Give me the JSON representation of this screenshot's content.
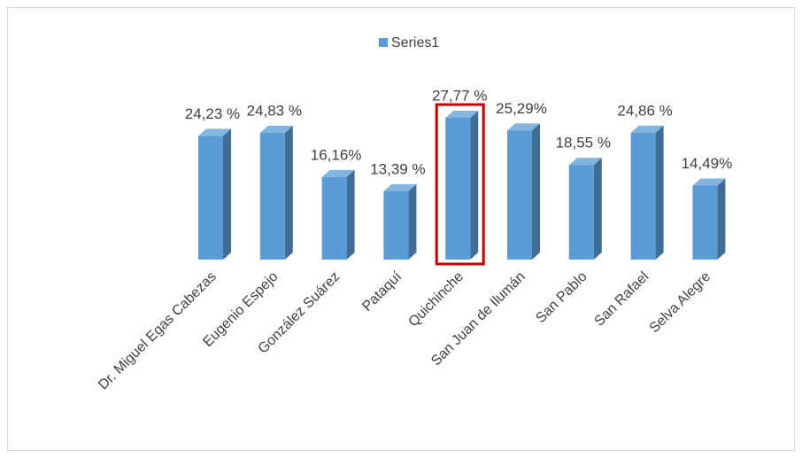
{
  "chart_data": {
    "type": "bar3d",
    "categories": [
      "Dr. Miguel Egas Cabezas",
      "Eugenio Espejo",
      "González Suárez",
      "Pataquí",
      "Quichinche",
      "San Juan de Ilumán",
      "San Pablo",
      "San Rafael",
      "Selva Alegre"
    ],
    "series": [
      {
        "name": "Series1",
        "color": "#5b9bd5",
        "values": [
          24.23,
          24.83,
          16.16,
          13.39,
          27.77,
          25.29,
          18.55,
          24.86,
          14.49
        ],
        "value_labels": [
          "24,23 %",
          "24,83 %",
          "16,16%",
          "13,39 %",
          "27,77 %",
          "25,29%",
          "18,55 %",
          "24,86 %",
          "14,49%"
        ]
      }
    ],
    "legend": "top",
    "highlight": "Quichinche"
  }
}
